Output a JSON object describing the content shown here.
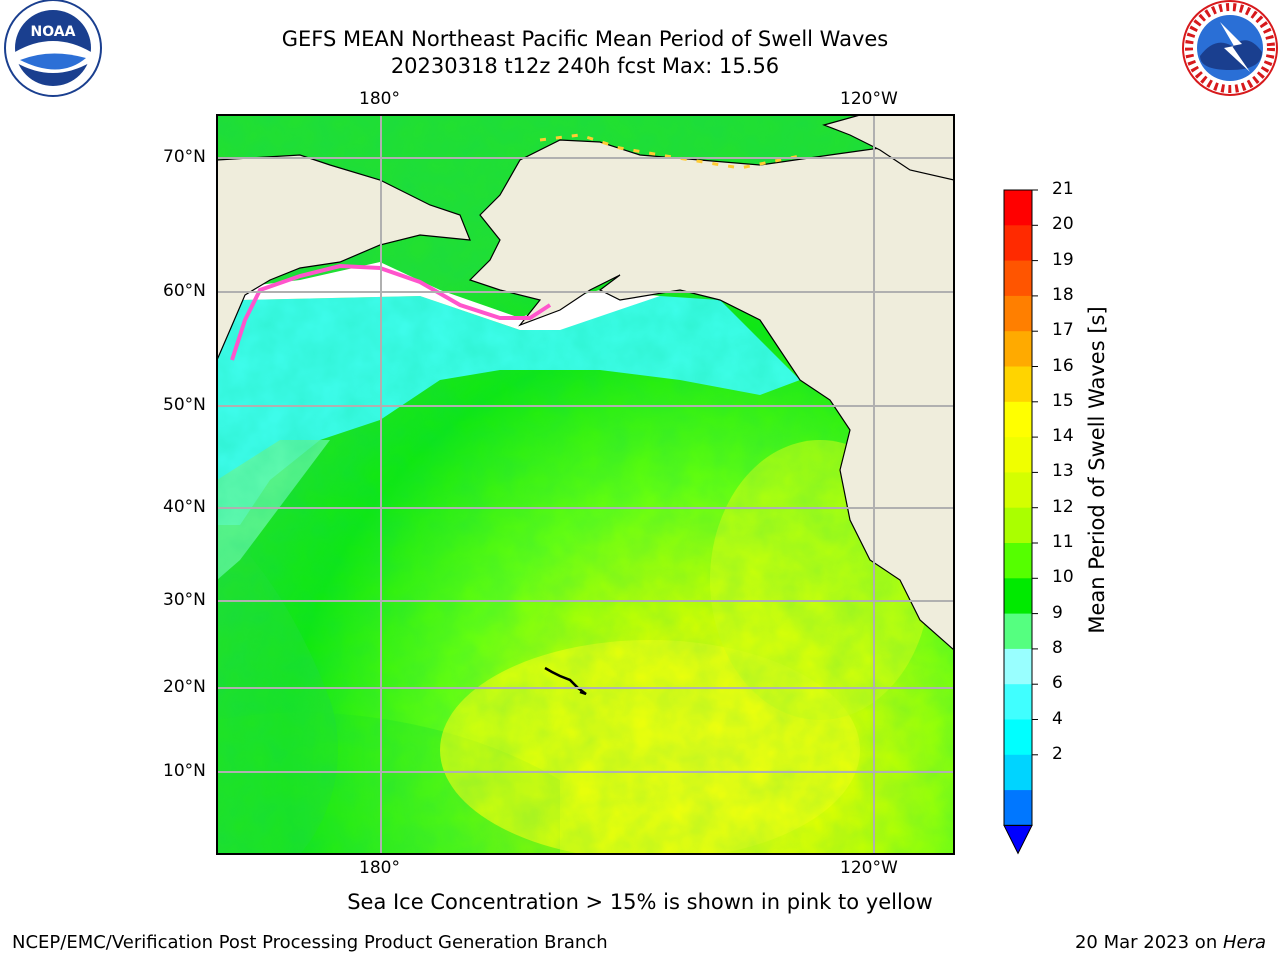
{
  "title": {
    "line1": "GEFS MEAN Northeast Pacific Mean Period of Swell Waves",
    "line2": "20230318 t12z 240h fcst   Max: 15.56"
  },
  "map": {
    "lon_labels_top": [
      "180°",
      "120°W"
    ],
    "lon_labels_bottom": [
      "180°",
      "120°W"
    ],
    "lat_labels": [
      "70°N",
      "60°N",
      "50°N",
      "40°N",
      "30°N",
      "20°N",
      "10°N"
    ],
    "colors": {
      "land": "#efeddc",
      "ice_free_ocean_north": "#ffffff",
      "grid": "#b0b0b0"
    }
  },
  "colorbar": {
    "label": "Mean Period of Swell Waves [s]",
    "ticks": [
      "21",
      "20",
      "19",
      "18",
      "17",
      "16",
      "15",
      "14",
      "13",
      "12",
      "11",
      "10",
      "9",
      "8",
      "6",
      "4",
      "2"
    ],
    "colors": [
      "#ff0000",
      "#ff2a00",
      "#ff5500",
      "#ff7f00",
      "#ffaa00",
      "#ffd400",
      "#ffff00",
      "#f0ff00",
      "#d4ff00",
      "#aaff00",
      "#55ff00",
      "#00ea00",
      "#55ff80",
      "#99ffff",
      "#40ffff",
      "#00ffff",
      "#00d4ff",
      "#0077ff"
    ],
    "under_color": "#0000ff"
  },
  "note": "Sea Ice Concentration > 15% is shown in pink to yellow",
  "footer": {
    "left": "NCEP/EMC/Verification Post Processing Product Generation Branch",
    "right_date": "20 Mar 2023 on ",
    "right_host": "Hera"
  },
  "logos": {
    "noaa": "NOAA",
    "nws": "NATIONAL WEATHER SERVICE"
  }
}
